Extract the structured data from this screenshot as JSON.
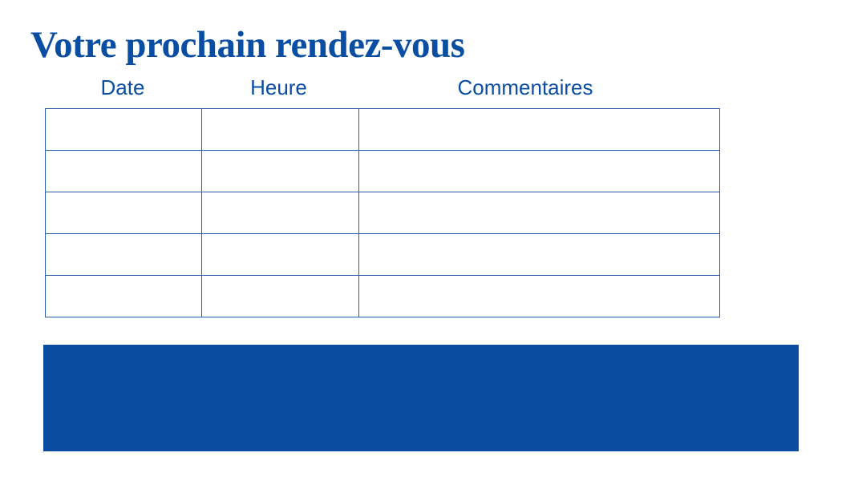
{
  "title": "Votre prochain rendez-vous",
  "table": {
    "headers": [
      "Date",
      "Heure",
      "Commentaires"
    ],
    "rows": [
      [
        "",
        "",
        ""
      ],
      [
        "",
        "",
        ""
      ],
      [
        "",
        "",
        ""
      ],
      [
        "",
        "",
        ""
      ],
      [
        "",
        "",
        ""
      ]
    ]
  },
  "colors": {
    "primary": "#0a4ea3",
    "banner": "#0a4ca0"
  }
}
